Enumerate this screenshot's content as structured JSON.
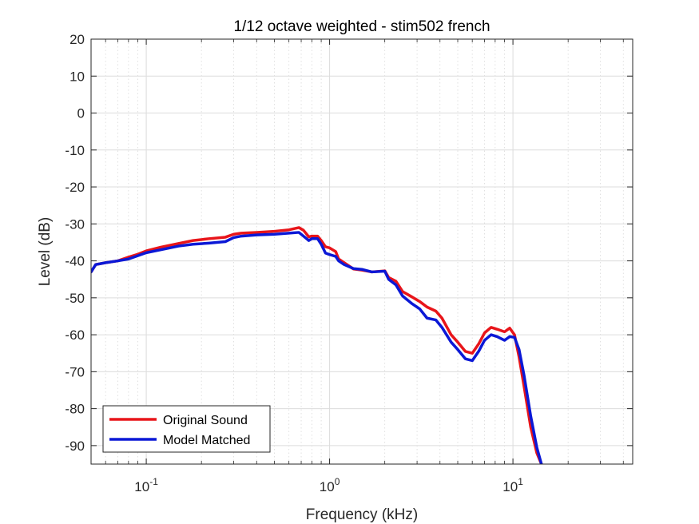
{
  "chart_data": {
    "type": "line",
    "title": "1/12 octave weighted - stim502 french",
    "xlabel": "Frequency (kHz)",
    "ylabel": "Level (dB)",
    "xscale": "log",
    "xlim": [
      0.05,
      45
    ],
    "ylim": [
      -95,
      20
    ],
    "x_ticks": [
      0.1,
      1,
      10
    ],
    "x_tick_labels": [
      {
        "base": "10",
        "exp": "-1"
      },
      {
        "base": "10",
        "exp": "0"
      },
      {
        "base": "10",
        "exp": "1"
      }
    ],
    "y_ticks": [
      20,
      10,
      0,
      -10,
      -20,
      -30,
      -40,
      -50,
      -60,
      -70,
      -80,
      -90
    ],
    "y_tick_labels": [
      "20",
      "10",
      "0",
      "-10",
      "-20",
      "-30",
      "-40",
      "-50",
      "-60",
      "-70",
      "-80",
      "-90"
    ],
    "grid": true,
    "minor_grid": true,
    "legend_position": "bottom-left",
    "series": [
      {
        "name": "Original Sound",
        "color": "#e8151a",
        "x": [
          0.05,
          0.053,
          0.06,
          0.07,
          0.08,
          0.09,
          0.1,
          0.12,
          0.15,
          0.18,
          0.22,
          0.27,
          0.3,
          0.33,
          0.4,
          0.5,
          0.6,
          0.68,
          0.72,
          0.77,
          0.8,
          0.86,
          0.9,
          0.95,
          1.0,
          1.08,
          1.12,
          1.2,
          1.35,
          1.5,
          1.7,
          2.0,
          2.1,
          2.3,
          2.5,
          2.8,
          3.1,
          3.4,
          3.8,
          4.1,
          4.6,
          5.0,
          5.5,
          6.0,
          6.5,
          7.0,
          7.6,
          8.2,
          9.0,
          9.6,
          10.2,
          10.8,
          11.5,
          12.5,
          13.5,
          14.3
        ],
        "values": [
          -43,
          -41,
          -40.5,
          -40,
          -39,
          -38.2,
          -37.3,
          -36.3,
          -35.3,
          -34.5,
          -34,
          -33.6,
          -32.8,
          -32.5,
          -32.3,
          -32,
          -31.6,
          -31,
          -31.7,
          -33.5,
          -33.3,
          -33.3,
          -34.5,
          -36.2,
          -36.5,
          -37.5,
          -39.5,
          -40.5,
          -42.2,
          -42.5,
          -43,
          -42.7,
          -44.5,
          -45.5,
          -48.3,
          -49.7,
          -51,
          -52.5,
          -53.6,
          -55.5,
          -60,
          -62,
          -64.5,
          -65,
          -62.5,
          -59.5,
          -58,
          -58.5,
          -59.2,
          -58.2,
          -60,
          -66,
          -74,
          -85,
          -92,
          -95
        ]
      },
      {
        "name": "Model Matched",
        "color": "#0b18d6",
        "x": [
          0.05,
          0.053,
          0.06,
          0.07,
          0.08,
          0.09,
          0.1,
          0.12,
          0.15,
          0.18,
          0.22,
          0.27,
          0.3,
          0.33,
          0.4,
          0.5,
          0.6,
          0.68,
          0.72,
          0.77,
          0.8,
          0.86,
          0.9,
          0.95,
          1.0,
          1.08,
          1.12,
          1.2,
          1.35,
          1.5,
          1.7,
          2.0,
          2.1,
          2.3,
          2.5,
          2.8,
          3.1,
          3.4,
          3.8,
          4.1,
          4.6,
          5.0,
          5.5,
          6.0,
          6.5,
          7.0,
          7.6,
          8.2,
          9.0,
          9.6,
          10.2,
          10.8,
          11.5,
          12.5,
          13.5,
          14.3
        ],
        "values": [
          -43,
          -41,
          -40.5,
          -40,
          -39.5,
          -38.6,
          -37.8,
          -37,
          -36,
          -35.5,
          -35.2,
          -34.8,
          -33.7,
          -33.3,
          -33,
          -32.8,
          -32.5,
          -32.3,
          -33.3,
          -34.5,
          -34,
          -34,
          -35.5,
          -37.9,
          -38.3,
          -38.8,
          -40,
          -41,
          -42.1,
          -42.3,
          -43,
          -42.8,
          -45,
          -46.5,
          -49.5,
          -51.5,
          -53,
          -55.5,
          -56,
          -58,
          -62,
          -64,
          -66.5,
          -67,
          -64.5,
          -61.5,
          -60,
          -60.5,
          -61.5,
          -60.5,
          -60.7,
          -64,
          -71,
          -82,
          -90.5,
          -95
        ]
      }
    ]
  }
}
